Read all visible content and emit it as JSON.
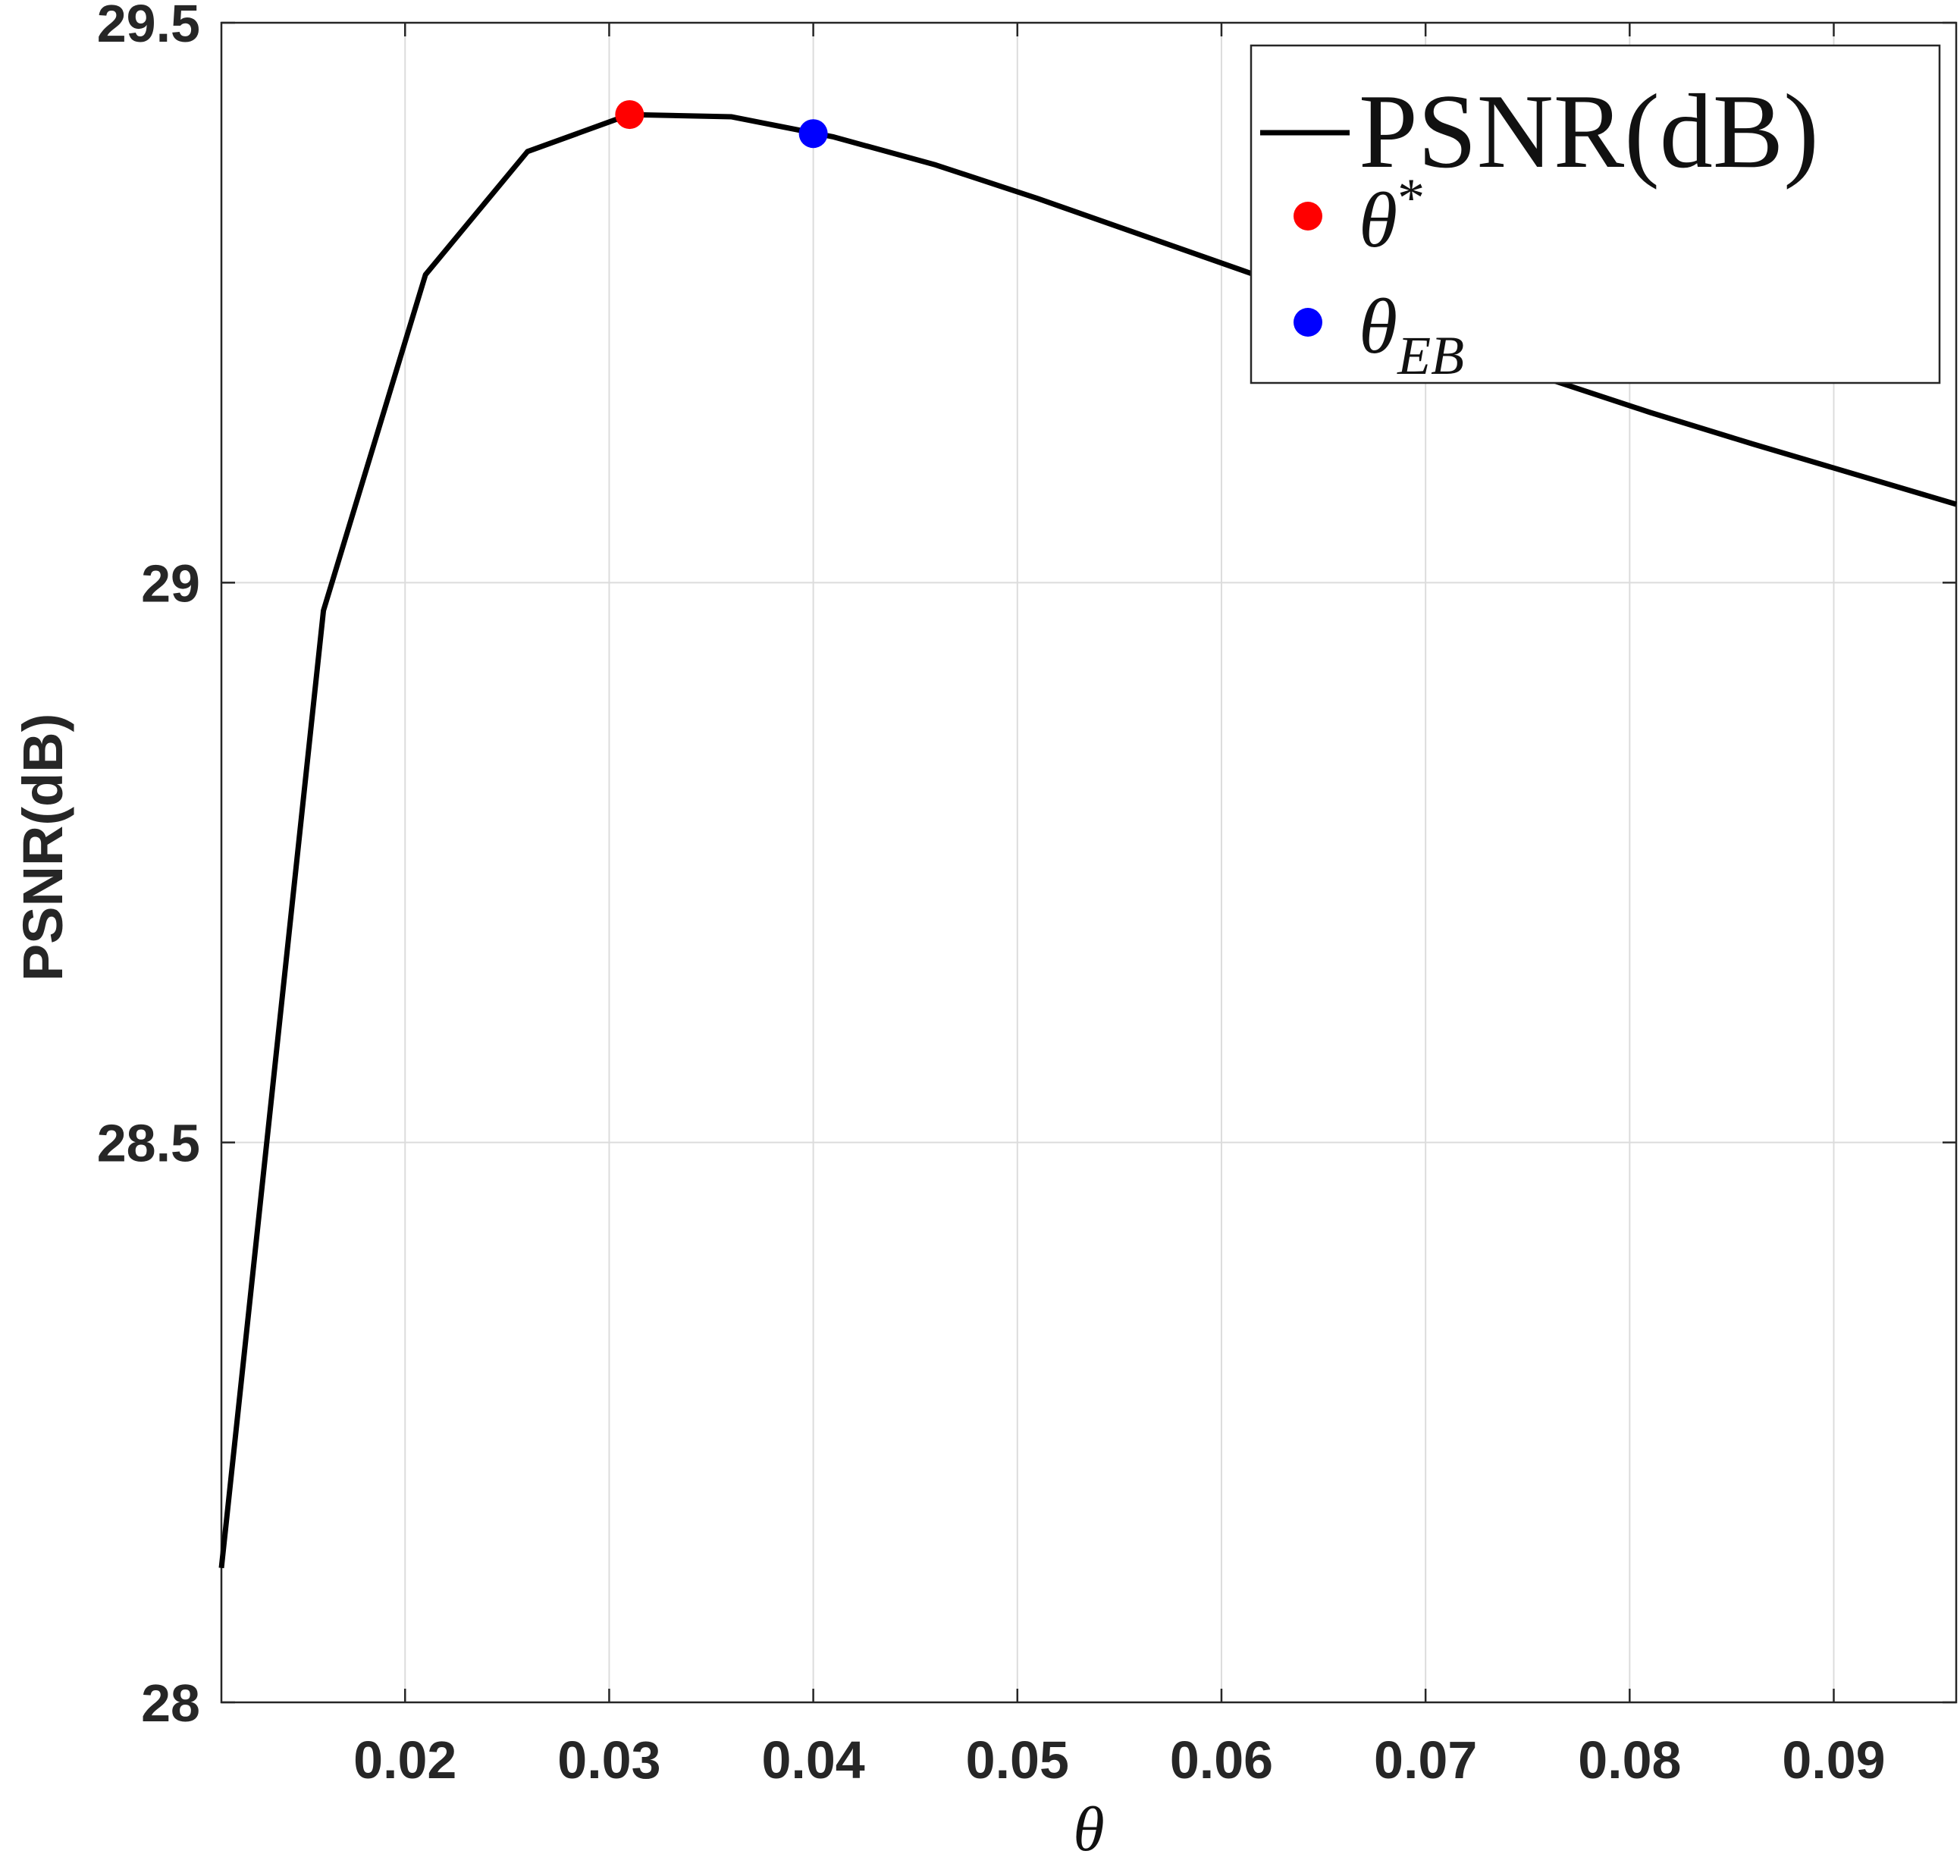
{
  "chart_data": {
    "type": "line",
    "xlabel": "θ",
    "ylabel": "PSNR(dB)",
    "xlim": [
      0.011,
      0.096
    ],
    "ylim": [
      28.0,
      29.5
    ],
    "xticks": [
      0.02,
      0.03,
      0.04,
      0.05,
      0.06,
      0.07,
      0.08,
      0.09
    ],
    "xtick_labels": [
      "0.02",
      "0.03",
      "0.04",
      "0.05",
      "0.06",
      "0.07",
      "0.08",
      "0.09"
    ],
    "yticks": [
      28.0,
      28.5,
      29.0,
      29.5
    ],
    "ytick_labels": [
      "28",
      "28.5",
      "29",
      "29.5"
    ],
    "grid": true,
    "legend_position": "top-right",
    "series": [
      {
        "name": "PSNR(dB)",
        "kind": "line",
        "color": "#000000",
        "x": [
          0.011,
          0.016,
          0.021,
          0.026,
          0.031,
          0.036,
          0.041,
          0.046,
          0.051,
          0.056,
          0.061,
          0.066,
          0.071,
          0.076,
          0.081,
          0.086,
          0.091,
          0.096
        ],
        "y": [
          28.12,
          28.975,
          29.275,
          29.385,
          29.418,
          29.416,
          29.398,
          29.373,
          29.343,
          29.311,
          29.279,
          29.247,
          29.214,
          29.182,
          29.152,
          29.124,
          29.097,
          29.07
        ]
      },
      {
        "name": "θ*",
        "kind": "marker",
        "color": "#ff0000",
        "x": [
          0.031
        ],
        "y": [
          29.418
        ]
      },
      {
        "name": "θ_EB",
        "kind": "marker",
        "color": "#0000ff",
        "x": [
          0.04
        ],
        "y": [
          29.401
        ]
      }
    ],
    "legend": [
      {
        "label_main": "PSNR(dB)",
        "label_sub": "",
        "label_sup": "",
        "symbol": "line",
        "color": "#000000"
      },
      {
        "label_main": "θ",
        "label_sub": "",
        "label_sup": "*",
        "symbol": "dot",
        "color": "#ff0000"
      },
      {
        "label_main": "θ",
        "label_sub": "EB",
        "label_sup": "",
        "symbol": "dot",
        "color": "#0000ff"
      }
    ]
  }
}
